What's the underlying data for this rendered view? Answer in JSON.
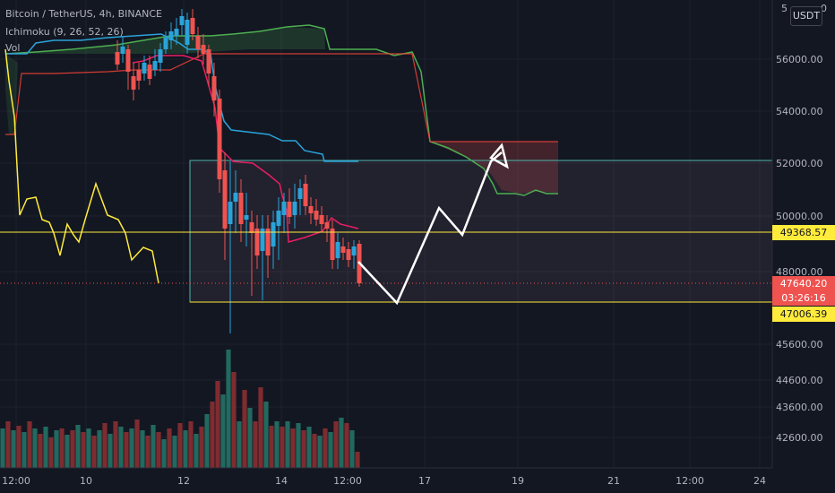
{
  "legend": {
    "title": "Bitcoin / TetherUS, 4h, BINANCE",
    "ichimoku": "Ichimoku (9, 26, 52, 26)",
    "vol": "Vol"
  },
  "currency_button": "USDT",
  "price_axis": {
    "ticks": [
      "56000.00",
      "54000.00",
      "52000.00",
      "50000.00",
      "48000.00",
      "45600.00",
      "44600.00",
      "43600.00",
      "42600.00"
    ],
    "top_partial": [
      "5",
      "0"
    ]
  },
  "time_axis": {
    "ticks": [
      "12:00",
      "10",
      "12",
      "14",
      "12:00",
      "17",
      "19",
      "21",
      "12:00",
      "24"
    ]
  },
  "price_tags": {
    "upper_line": "49368.57",
    "current_price": "47640.20",
    "countdown": "03:26:16",
    "lower_line": "47006.39"
  },
  "colors": {
    "background": "#131722",
    "grid": "#1e222d",
    "axis_text": "#b2b5be",
    "up_candle": "#26a69a",
    "up_candle_drawn": "#2aa3d9",
    "down_candle": "#ef5350",
    "vol_up": "#22695f",
    "vol_down": "#7e2c30",
    "tenkan": "#2aa3d9",
    "kijun": "#e91e63",
    "senkou_a": "#4caf50",
    "senkou_b": "#f44336",
    "chikou": "#ffeb3b",
    "horizontal_lines": "#ffeb3b",
    "rectangle": "#4db6ac",
    "forecast_path": "#ffffff",
    "current_price_tag": "#ef5350"
  }
}
